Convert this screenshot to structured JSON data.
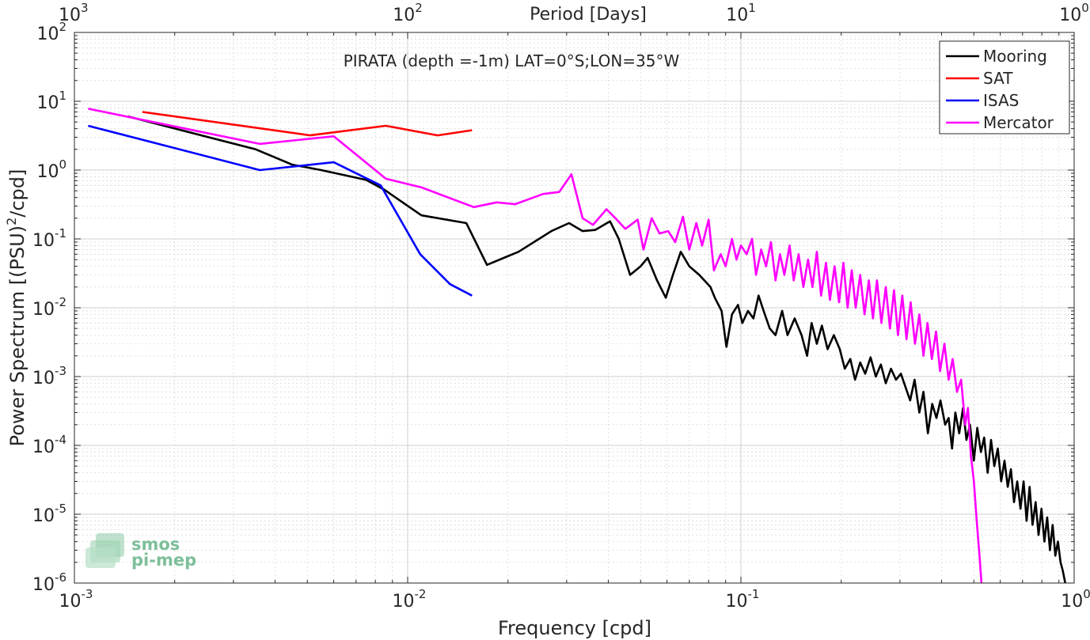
{
  "chart_data": {
    "type": "line",
    "title": "PIRATA (depth =-1m) LAT=0°S;LON=35°W",
    "xlabel": "Frequency [cpd]",
    "ylabel_main": "Power Spectrum [(PSU)",
    "ylabel_sup": "2",
    "ylabel_end": "/cpd]",
    "top_axis_label": "Period [Days]",
    "x_scale": "log",
    "y_scale": "log",
    "xlim": [
      0.001,
      1
    ],
    "ylim": [
      1e-06,
      100
    ],
    "grid": true,
    "legend_position": "top-right",
    "x_ticks": [
      {
        "value": 0.001,
        "base": "10",
        "exp": "-3"
      },
      {
        "value": 0.01,
        "base": "10",
        "exp": "-2"
      },
      {
        "value": 0.1,
        "base": "10",
        "exp": "-1"
      },
      {
        "value": 1,
        "base": "10",
        "exp": "0"
      }
    ],
    "y_ticks": [
      {
        "value": 1e-06,
        "base": "10",
        "exp": "-6"
      },
      {
        "value": 1e-05,
        "base": "10",
        "exp": "-5"
      },
      {
        "value": 0.0001,
        "base": "10",
        "exp": "-4"
      },
      {
        "value": 0.001,
        "base": "10",
        "exp": "-3"
      },
      {
        "value": 0.01,
        "base": "10",
        "exp": "-2"
      },
      {
        "value": 0.1,
        "base": "10",
        "exp": "-1"
      },
      {
        "value": 1,
        "base": "10",
        "exp": "0"
      },
      {
        "value": 10,
        "base": "10",
        "exp": "1"
      },
      {
        "value": 100,
        "base": "10",
        "exp": "2"
      }
    ],
    "top_ticks": [
      {
        "value": 0.001,
        "base": "10",
        "exp": "3"
      },
      {
        "value": 0.01,
        "base": "10",
        "exp": "2"
      },
      {
        "value": 0.1,
        "base": "10",
        "exp": "1"
      },
      {
        "value": 1,
        "base": "10",
        "exp": "0"
      }
    ],
    "series": [
      {
        "name": "Mooring",
        "color": "#000000",
        "points": [
          [
            0.00145,
            6.0
          ],
          [
            0.0035,
            2.0
          ],
          [
            0.0045,
            1.2
          ],
          [
            0.0055,
            1.0
          ],
          [
            0.0075,
            0.72
          ],
          [
            0.0085,
            0.52
          ],
          [
            0.011,
            0.22
          ],
          [
            0.015,
            0.17
          ],
          [
            0.0173,
            0.042
          ],
          [
            0.0215,
            0.065
          ],
          [
            0.027,
            0.13
          ],
          [
            0.0305,
            0.17
          ],
          [
            0.0335,
            0.13
          ],
          [
            0.0365,
            0.135
          ],
          [
            0.0405,
            0.18
          ],
          [
            0.043,
            0.1
          ],
          [
            0.0465,
            0.03
          ],
          [
            0.05,
            0.04
          ],
          [
            0.0525,
            0.053
          ],
          [
            0.056,
            0.025
          ],
          [
            0.0595,
            0.014
          ],
          [
            0.0625,
            0.03
          ],
          [
            0.066,
            0.065
          ],
          [
            0.07,
            0.04
          ],
          [
            0.075,
            0.03
          ],
          [
            0.081,
            0.02
          ],
          [
            0.0835,
            0.014
          ],
          [
            0.0875,
            0.009
          ],
          [
            0.0905,
            0.0027
          ],
          [
            0.094,
            0.008
          ],
          [
            0.098,
            0.011
          ],
          [
            0.101,
            0.006
          ],
          [
            0.105,
            0.009
          ],
          [
            0.109,
            0.007
          ],
          [
            0.113,
            0.015
          ],
          [
            0.117,
            0.009
          ],
          [
            0.122,
            0.005
          ],
          [
            0.127,
            0.004
          ],
          [
            0.133,
            0.009
          ],
          [
            0.138,
            0.004
          ],
          [
            0.145,
            0.007
          ],
          [
            0.152,
            0.004
          ],
          [
            0.158,
            0.002
          ],
          [
            0.163,
            0.006
          ],
          [
            0.169,
            0.003
          ],
          [
            0.175,
            0.0055
          ],
          [
            0.182,
            0.0025
          ],
          [
            0.19,
            0.004
          ],
          [
            0.198,
            0.0025
          ],
          [
            0.205,
            0.0013
          ],
          [
            0.213,
            0.0018
          ],
          [
            0.22,
            0.0009
          ],
          [
            0.228,
            0.0016
          ],
          [
            0.236,
            0.0011
          ],
          [
            0.245,
            0.0019
          ],
          [
            0.254,
            0.001
          ],
          [
            0.263,
            0.0015
          ],
          [
            0.272,
            0.0008
          ],
          [
            0.282,
            0.0013
          ],
          [
            0.292,
            0.0009
          ],
          [
            0.302,
            0.0011
          ],
          [
            0.312,
            0.0007
          ],
          [
            0.322,
            0.00045
          ],
          [
            0.332,
            0.0009
          ],
          [
            0.343,
            0.0003
          ],
          [
            0.353,
            0.0006
          ],
          [
            0.364,
            0.00015
          ],
          [
            0.375,
            0.0004
          ],
          [
            0.386,
            0.00025
          ],
          [
            0.397,
            0.00045
          ],
          [
            0.41,
            0.0002
          ],
          [
            0.42,
            0.00025
          ],
          [
            0.43,
            9e-05
          ],
          [
            0.44,
            0.0003
          ],
          [
            0.452,
            0.00015
          ],
          [
            0.464,
            0.00035
          ],
          [
            0.475,
            0.00012
          ],
          [
            0.487,
            0.0002
          ],
          [
            0.5,
            6e-05
          ],
          [
            0.512,
            0.00018
          ],
          [
            0.525,
            8e-05
          ],
          [
            0.537,
            0.00013
          ],
          [
            0.55,
            4e-05
          ],
          [
            0.563,
            0.00012
          ],
          [
            0.576,
            5e-05
          ],
          [
            0.59,
            9e-05
          ],
          [
            0.604,
            3e-05
          ],
          [
            0.618,
            6e-05
          ],
          [
            0.632,
            2.5e-05
          ],
          [
            0.646,
            4.5e-05
          ],
          [
            0.66,
            1.5e-05
          ],
          [
            0.675,
            3e-05
          ],
          [
            0.69,
            1.2e-05
          ],
          [
            0.705,
            3e-05
          ],
          [
            0.72,
            8e-06
          ],
          [
            0.735,
            2.5e-05
          ],
          [
            0.75,
            7e-06
          ],
          [
            0.766,
            1.5e-05
          ],
          [
            0.782,
            5e-06
          ],
          [
            0.798,
            1.2e-05
          ],
          [
            0.814,
            4e-06
          ],
          [
            0.83,
            9e-06
          ],
          [
            0.846,
            3e-06
          ],
          [
            0.862,
            7e-06
          ],
          [
            0.878,
            2.5e-06
          ],
          [
            0.894,
            4e-06
          ],
          [
            0.91,
            2e-06
          ],
          [
            0.925,
            1.5e-06
          ],
          [
            0.94,
            1e-06
          ]
        ]
      },
      {
        "name": "SAT",
        "color": "#ff0000",
        "points": [
          [
            0.0016,
            7.0
          ],
          [
            0.0051,
            3.2
          ],
          [
            0.0086,
            4.4
          ],
          [
            0.0123,
            3.2
          ],
          [
            0.0156,
            3.8
          ]
        ]
      },
      {
        "name": "ISAS",
        "color": "#0000ff",
        "points": [
          [
            0.0011,
            4.4
          ],
          [
            0.0036,
            1.0
          ],
          [
            0.006,
            1.3
          ],
          [
            0.0083,
            0.6
          ],
          [
            0.0109,
            0.06
          ],
          [
            0.0134,
            0.022
          ],
          [
            0.0156,
            0.015
          ]
        ]
      },
      {
        "name": "Mercator",
        "color": "#ff00ff",
        "points": [
          [
            0.0011,
            7.8
          ],
          [
            0.0036,
            2.4
          ],
          [
            0.006,
            3.1
          ],
          [
            0.0086,
            0.75
          ],
          [
            0.011,
            0.56
          ],
          [
            0.0158,
            0.29
          ],
          [
            0.0185,
            0.34
          ],
          [
            0.021,
            0.32
          ],
          [
            0.0255,
            0.45
          ],
          [
            0.0285,
            0.48
          ],
          [
            0.031,
            0.87
          ],
          [
            0.0335,
            0.2
          ],
          [
            0.036,
            0.16
          ],
          [
            0.0395,
            0.27
          ],
          [
            0.042,
            0.2
          ],
          [
            0.045,
            0.14
          ],
          [
            0.049,
            0.19
          ],
          [
            0.051,
            0.07
          ],
          [
            0.054,
            0.2
          ],
          [
            0.057,
            0.12
          ],
          [
            0.0605,
            0.13
          ],
          [
            0.0635,
            0.09
          ],
          [
            0.067,
            0.21
          ],
          [
            0.07,
            0.07
          ],
          [
            0.0735,
            0.17
          ],
          [
            0.0765,
            0.08
          ],
          [
            0.08,
            0.19
          ],
          [
            0.083,
            0.035
          ],
          [
            0.087,
            0.06
          ],
          [
            0.09,
            0.04
          ],
          [
            0.094,
            0.1
          ],
          [
            0.097,
            0.05
          ],
          [
            0.1,
            0.08
          ],
          [
            0.104,
            0.06
          ],
          [
            0.108,
            0.1
          ],
          [
            0.111,
            0.03
          ],
          [
            0.115,
            0.07
          ],
          [
            0.119,
            0.04
          ],
          [
            0.123,
            0.09
          ],
          [
            0.127,
            0.025
          ],
          [
            0.131,
            0.06
          ],
          [
            0.135,
            0.03
          ],
          [
            0.14,
            0.08
          ],
          [
            0.144,
            0.025
          ],
          [
            0.149,
            0.06
          ],
          [
            0.154,
            0.02
          ],
          [
            0.159,
            0.05
          ],
          [
            0.164,
            0.02
          ],
          [
            0.169,
            0.065
          ],
          [
            0.174,
            0.015
          ],
          [
            0.18,
            0.045
          ],
          [
            0.185,
            0.013
          ],
          [
            0.191,
            0.04
          ],
          [
            0.197,
            0.012
          ],
          [
            0.203,
            0.045
          ],
          [
            0.209,
            0.01
          ],
          [
            0.215,
            0.035
          ],
          [
            0.221,
            0.01
          ],
          [
            0.228,
            0.03
          ],
          [
            0.235,
            0.008
          ],
          [
            0.242,
            0.025
          ],
          [
            0.249,
            0.007
          ],
          [
            0.256,
            0.025
          ],
          [
            0.264,
            0.006
          ],
          [
            0.272,
            0.02
          ],
          [
            0.28,
            0.005
          ],
          [
            0.288,
            0.018
          ],
          [
            0.296,
            0.004
          ],
          [
            0.305,
            0.015
          ],
          [
            0.314,
            0.0035
          ],
          [
            0.323,
            0.012
          ],
          [
            0.333,
            0.003
          ],
          [
            0.343,
            0.008
          ],
          [
            0.353,
            0.002
          ],
          [
            0.363,
            0.006
          ],
          [
            0.374,
            0.0018
          ],
          [
            0.385,
            0.0045
          ],
          [
            0.396,
            0.0012
          ],
          [
            0.408,
            0.003
          ],
          [
            0.42,
            0.0009
          ],
          [
            0.432,
            0.0018
          ],
          [
            0.445,
            0.0006
          ],
          [
            0.458,
            0.0009
          ],
          [
            0.471,
            0.0002
          ],
          [
            0.48,
            0.00035
          ],
          [
            0.49,
            7e-05
          ],
          [
            0.5,
            3e-05
          ],
          [
            0.51,
            8e-06
          ],
          [
            0.52,
            2.5e-06
          ],
          [
            0.527,
            1e-06
          ]
        ]
      }
    ]
  },
  "logo": {
    "line1": "smos",
    "line2": "pi-mep",
    "color": "#7dbf9a"
  }
}
